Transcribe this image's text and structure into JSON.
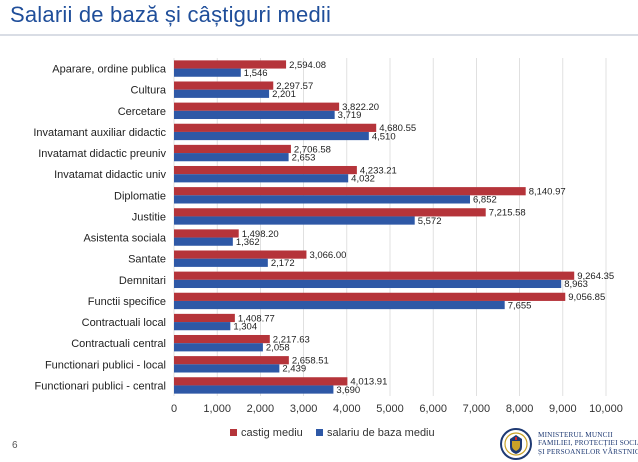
{
  "slide": {
    "title": "Salarii de bază și câștiguri medii",
    "page_number": "6",
    "ministry": {
      "line1": "MINISTERUL MUNCII",
      "line2": "FAMILIEI, PROTECȚIEI SOCIALE",
      "line3": "ȘI PERSOANELOR VÂRSTNICE"
    }
  },
  "colors": {
    "castig": "#b5343a",
    "salariu": "#2e58a6",
    "title": "#1f4e9a",
    "grid": "#d9d9d9"
  },
  "chart_data": {
    "type": "bar",
    "orientation": "horizontal",
    "title": "",
    "xlabel": "",
    "ylabel": "",
    "xlim": [
      0,
      10000
    ],
    "x_ticks": [
      "0",
      "1,000",
      "2,000",
      "3,000",
      "4,000",
      "5,000",
      "6,000",
      "7,000",
      "8,000",
      "9,000",
      "10,000"
    ],
    "x_tick_values": [
      0,
      1000,
      2000,
      3000,
      4000,
      5000,
      6000,
      7000,
      8000,
      9000,
      10000
    ],
    "grid": true,
    "legend_position": "bottom",
    "categories": [
      "Aparare, ordine publica",
      "Cultura",
      "Cercetare",
      "Invatamant auxiliar didactic",
      "Invatamat didactic preuniv",
      "Invatamat didactic univ",
      "Diplomatie",
      "Justitie",
      "Asistenta sociala",
      "Santate",
      "Demnitari",
      "Functii specifice",
      "Contractuali local",
      "Contractuali central",
      "Functionari publici - local",
      "Functionari publici - central"
    ],
    "series": [
      {
        "name": "castig mediu",
        "values": [
          2594.08,
          2297.57,
          3822.2,
          4680.55,
          2706.58,
          4233.21,
          8140.97,
          7215.58,
          1498.2,
          3066.0,
          9264.35,
          9056.85,
          1408.77,
          2217.63,
          2658.51,
          4013.91
        ],
        "labels": [
          "2,594.08",
          "2,297.57",
          "3,822.20",
          "4,680.55",
          "2,706.58",
          "4,233.21",
          "8,140.97",
          "7,215.58",
          "1,498.20",
          "3,066.00",
          "9,264.35",
          "9,056.85",
          "1,408.77",
          "2,217.63",
          "2,658.51",
          "4,013.91"
        ]
      },
      {
        "name": "salariu de baza mediu",
        "values": [
          1546,
          2201,
          3719,
          4510,
          2653,
          4032,
          6852,
          5572,
          1362,
          2172,
          8963,
          7655,
          1304,
          2058,
          2439,
          3690
        ],
        "labels": [
          "1,546",
          "2,201",
          "3,719",
          "4,510",
          "2,653",
          "4,032",
          "6,852",
          "5,572",
          "1,362",
          "2,172",
          "8,963",
          "7,655",
          "1,304",
          "2,058",
          "2,439",
          "3,690"
        ]
      }
    ]
  }
}
